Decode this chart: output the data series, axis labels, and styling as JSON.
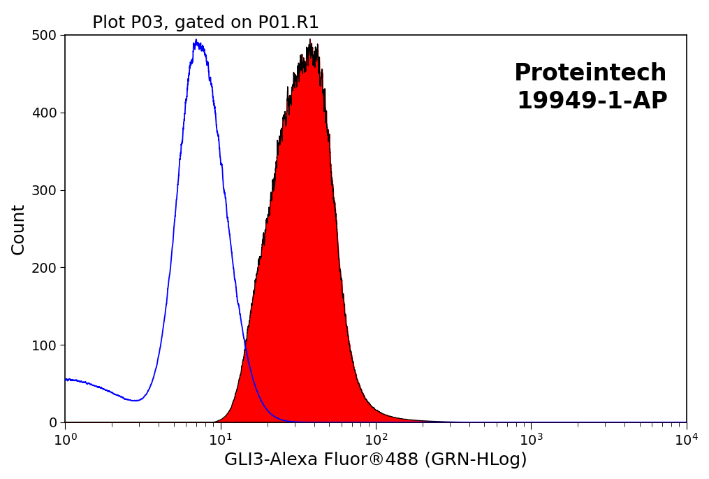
{
  "title": "Plot P03, gated on P01.R1",
  "xlabel": "GLI3-Alexa Fluor®488 (GRN-HLog)",
  "ylabel": "Count",
  "annotation_line1": "Proteintech",
  "annotation_line2": "19949-1-AP",
  "ylim": [
    0,
    500
  ],
  "yticks": [
    0,
    100,
    200,
    300,
    400,
    500
  ],
  "blue_color": "#0000FF",
  "red_fill_color": "#FF0000",
  "black_outline_color": "#000000",
  "background_color": "#FFFFFF",
  "title_fontsize": 18,
  "label_fontsize": 18,
  "annotation_fontsize": 24,
  "tick_fontsize": 14
}
